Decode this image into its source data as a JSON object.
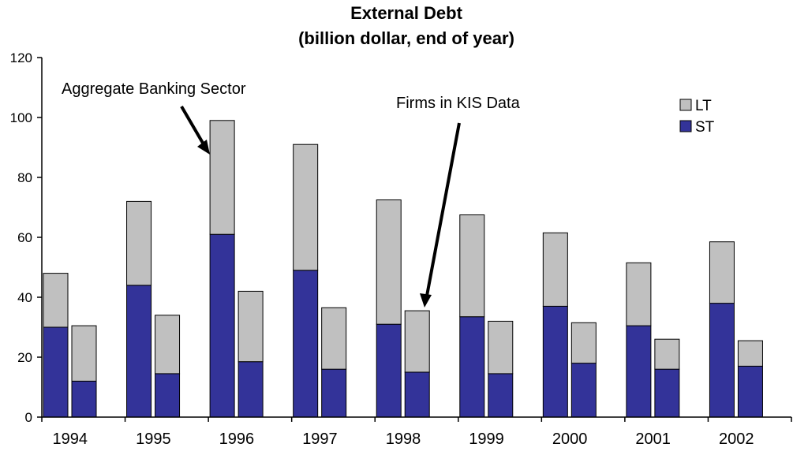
{
  "chart_data": {
    "type": "bar",
    "stacked": true,
    "title": "External Debt",
    "subtitle": "(billion dollar, end of year)",
    "categories": [
      "1994",
      "1995",
      "1996",
      "1997",
      "1998",
      "1999",
      "2000",
      "2001",
      "2002"
    ],
    "groups_per_category": 2,
    "series": [
      {
        "name": "ST",
        "color": "#333399",
        "values": [
          [
            30,
            12
          ],
          [
            44,
            14.5
          ],
          [
            61,
            18.5
          ],
          [
            49,
            16
          ],
          [
            31,
            15
          ],
          [
            33.5,
            14.5
          ],
          [
            37,
            18
          ],
          [
            30.5,
            16
          ],
          [
            38,
            17
          ]
        ]
      },
      {
        "name": "LT",
        "color": "#c0c0c0",
        "values": [
          [
            18,
            18.5
          ],
          [
            28,
            19.5
          ],
          [
            38,
            23.5
          ],
          [
            42,
            20.5
          ],
          [
            41.5,
            20.5
          ],
          [
            34,
            17.5
          ],
          [
            24.5,
            13.5
          ],
          [
            21,
            10
          ],
          [
            20.5,
            8.5
          ]
        ]
      }
    ],
    "ylim": [
      0,
      120
    ],
    "yticks": [
      0,
      20,
      40,
      60,
      80,
      100,
      120
    ],
    "xlabel": "",
    "ylabel": "",
    "legend": "top-right",
    "grid": false,
    "annotations": [
      {
        "text": "Aggregate Banking Sector",
        "points_to": "1996 first bar"
      },
      {
        "text": "Firms in KIS Data",
        "points_to": "1998 second bar"
      }
    ]
  }
}
